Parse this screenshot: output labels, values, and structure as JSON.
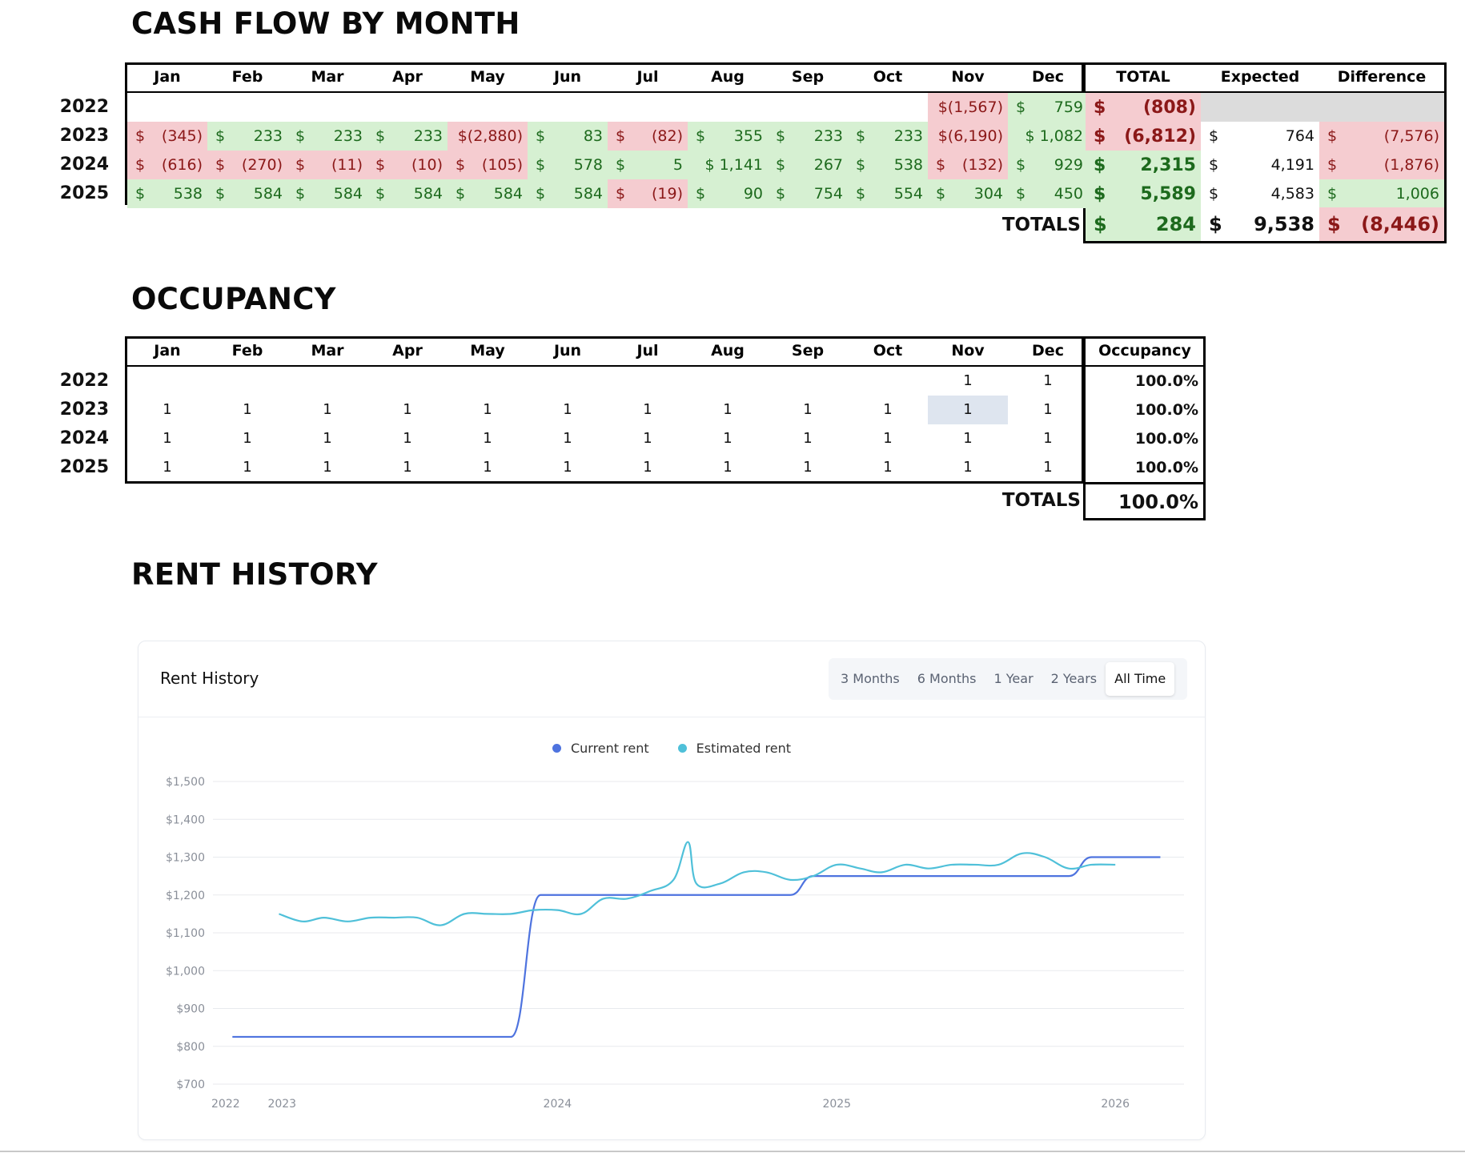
{
  "sections": {
    "cash_flow_title": "CASH FLOW BY MONTH",
    "occupancy_title": "OCCUPANCY",
    "rent_history_title": "RENT HISTORY"
  },
  "months": [
    "Jan",
    "Feb",
    "Mar",
    "Apr",
    "May",
    "Jun",
    "Jul",
    "Aug",
    "Sep",
    "Oct",
    "Nov",
    "Dec"
  ],
  "cash_flow": {
    "headers": {
      "total": "TOTAL",
      "expected": "Expected",
      "difference": "Difference"
    },
    "rows": [
      {
        "year": "2022",
        "months": [
          null,
          null,
          null,
          null,
          null,
          null,
          null,
          null,
          null,
          null,
          {
            "s": "$",
            "v": "(1,567)",
            "t": "neg",
            "joined": true
          },
          {
            "s": "$",
            "v": "759",
            "t": "pos"
          }
        ],
        "total": {
          "s": "$",
          "v": "(808)",
          "t": "neg"
        },
        "expected": null,
        "difference": null
      },
      {
        "year": "2023",
        "months": [
          {
            "s": "$",
            "v": "(345)",
            "t": "neg"
          },
          {
            "s": "$",
            "v": "233",
            "t": "pos"
          },
          {
            "s": "$",
            "v": "233",
            "t": "pos"
          },
          {
            "s": "$",
            "v": "233",
            "t": "pos"
          },
          {
            "s": "$",
            "v": "(2,880)",
            "t": "neg",
            "joined": true
          },
          {
            "s": "$",
            "v": "83",
            "t": "pos"
          },
          {
            "s": "$",
            "v": "(82)",
            "t": "neg"
          },
          {
            "s": "$",
            "v": "355",
            "t": "pos"
          },
          {
            "s": "$",
            "v": "233",
            "t": "pos"
          },
          {
            "s": "$",
            "v": "233",
            "t": "pos"
          },
          {
            "s": "$",
            "v": "(6,190)",
            "t": "neg",
            "joined": true
          },
          {
            "s": "$",
            "v": "1,082",
            "t": "pos",
            "joined": true
          }
        ],
        "total": {
          "s": "$",
          "v": "(6,812)",
          "t": "neg"
        },
        "expected": {
          "s": "$",
          "v": "764"
        },
        "difference": {
          "s": "$",
          "v": "(7,576)",
          "t": "neg"
        }
      },
      {
        "year": "2024",
        "months": [
          {
            "s": "$",
            "v": "(616)",
            "t": "neg"
          },
          {
            "s": "$",
            "v": "(270)",
            "t": "neg"
          },
          {
            "s": "$",
            "v": "(11)",
            "t": "neg"
          },
          {
            "s": "$",
            "v": "(10)",
            "t": "neg"
          },
          {
            "s": "$",
            "v": "(105)",
            "t": "neg"
          },
          {
            "s": "$",
            "v": "578",
            "t": "pos"
          },
          {
            "s": "$",
            "v": "5",
            "t": "pos"
          },
          {
            "s": "$",
            "v": "1,141",
            "t": "pos",
            "joined": true
          },
          {
            "s": "$",
            "v": "267",
            "t": "pos"
          },
          {
            "s": "$",
            "v": "538",
            "t": "pos"
          },
          {
            "s": "$",
            "v": "(132)",
            "t": "neg"
          },
          {
            "s": "$",
            "v": "929",
            "t": "pos"
          }
        ],
        "total": {
          "s": "$",
          "v": "2,315",
          "t": "pos"
        },
        "expected": {
          "s": "$",
          "v": "4,191"
        },
        "difference": {
          "s": "$",
          "v": "(1,876)",
          "t": "neg"
        }
      },
      {
        "year": "2025",
        "months": [
          {
            "s": "$",
            "v": "538",
            "t": "pos"
          },
          {
            "s": "$",
            "v": "584",
            "t": "pos"
          },
          {
            "s": "$",
            "v": "584",
            "t": "pos"
          },
          {
            "s": "$",
            "v": "584",
            "t": "pos"
          },
          {
            "s": "$",
            "v": "584",
            "t": "pos"
          },
          {
            "s": "$",
            "v": "584",
            "t": "pos"
          },
          {
            "s": "$",
            "v": "(19)",
            "t": "neg"
          },
          {
            "s": "$",
            "v": "90",
            "t": "pos"
          },
          {
            "s": "$",
            "v": "754",
            "t": "pos"
          },
          {
            "s": "$",
            "v": "554",
            "t": "pos"
          },
          {
            "s": "$",
            "v": "304",
            "t": "pos"
          },
          {
            "s": "$",
            "v": "450",
            "t": "pos"
          }
        ],
        "total": {
          "s": "$",
          "v": "5,589",
          "t": "pos"
        },
        "expected": {
          "s": "$",
          "v": "4,583"
        },
        "difference": {
          "s": "$",
          "v": "1,006",
          "t": "pos"
        }
      }
    ],
    "totals": {
      "label": "TOTALS",
      "total": {
        "s": "$",
        "v": "284",
        "t": "pos"
      },
      "expected": {
        "s": "$",
        "v": "9,538"
      },
      "difference": {
        "s": "$",
        "v": "(8,446)",
        "t": "neg"
      }
    }
  },
  "occupancy": {
    "header": "Occupancy",
    "rows": [
      {
        "year": "2022",
        "months": [
          "",
          "",
          "",
          "",
          "",
          "",
          "",
          "",
          "",
          "",
          "1",
          "1"
        ],
        "pct": "100.0%"
      },
      {
        "year": "2023",
        "months": [
          "1",
          "1",
          "1",
          "1",
          "1",
          "1",
          "1",
          "1",
          "1",
          "1",
          "1",
          "1"
        ],
        "pct": "100.0%"
      },
      {
        "year": "2024",
        "months": [
          "1",
          "1",
          "1",
          "1",
          "1",
          "1",
          "1",
          "1",
          "1",
          "1",
          "1",
          "1"
        ],
        "pct": "100.0%"
      },
      {
        "year": "2025",
        "months": [
          "1",
          "1",
          "1",
          "1",
          "1",
          "1",
          "1",
          "1",
          "1",
          "1",
          "1",
          "1"
        ],
        "pct": "100.0%"
      }
    ],
    "totals": {
      "label": "TOTALS",
      "pct": "100.0%"
    }
  },
  "rent_card": {
    "title": "Rent History",
    "ranges": [
      "3 Months",
      "6 Months",
      "1 Year",
      "2 Years",
      "All Time"
    ],
    "active_range": "All Time"
  },
  "chart_data": {
    "type": "line",
    "title": "",
    "xlabel": "",
    "ylabel": "",
    "ylim": [
      700,
      1500
    ],
    "y_ticks": [
      "$1,500",
      "$1,400",
      "$1,300",
      "$1,200",
      "$1,100",
      "$1,000",
      "$900",
      "$800",
      "$700"
    ],
    "x_ticks": [
      "2022",
      "2023",
      "2024",
      "2025",
      "2026"
    ],
    "grid": true,
    "legend": "top-center",
    "series": [
      {
        "name": "Current rent",
        "color": "#4e73df",
        "points": [
          [
            "2022-11",
            825
          ],
          [
            "2023-01",
            825
          ],
          [
            "2023-06",
            825
          ],
          [
            "2023-11",
            825
          ],
          [
            "2023-12-10",
            1200
          ],
          [
            "2024-06",
            1200
          ],
          [
            "2024-11",
            1200
          ],
          [
            "2024-12",
            1250
          ],
          [
            "2025-06",
            1250
          ],
          [
            "2025-11",
            1250
          ],
          [
            "2025-12",
            1300
          ],
          [
            "2026-03",
            1300
          ]
        ]
      },
      {
        "name": "Estimated rent",
        "color": "#4fc0d9",
        "points": [
          [
            "2023-01",
            1150
          ],
          [
            "2023-02",
            1130
          ],
          [
            "2023-03",
            1140
          ],
          [
            "2023-04",
            1130
          ],
          [
            "2023-05",
            1140
          ],
          [
            "2023-06",
            1140
          ],
          [
            "2023-07",
            1140
          ],
          [
            "2023-08",
            1120
          ],
          [
            "2023-09",
            1150
          ],
          [
            "2023-10",
            1150
          ],
          [
            "2023-11",
            1150
          ],
          [
            "2023-12",
            1160
          ],
          [
            "2024-01",
            1160
          ],
          [
            "2024-02",
            1150
          ],
          [
            "2024-03",
            1190
          ],
          [
            "2024-04",
            1190
          ],
          [
            "2024-05",
            1210
          ],
          [
            "2024-06",
            1240
          ],
          [
            "2024-06-20",
            1340
          ],
          [
            "2024-07",
            1230
          ],
          [
            "2024-08",
            1230
          ],
          [
            "2024-09",
            1260
          ],
          [
            "2024-10",
            1260
          ],
          [
            "2024-11",
            1240
          ],
          [
            "2024-12",
            1250
          ],
          [
            "2025-01",
            1280
          ],
          [
            "2025-02",
            1270
          ],
          [
            "2025-03",
            1260
          ],
          [
            "2025-04",
            1280
          ],
          [
            "2025-05",
            1270
          ],
          [
            "2025-06",
            1280
          ],
          [
            "2025-07",
            1280
          ],
          [
            "2025-08",
            1280
          ],
          [
            "2025-09",
            1310
          ],
          [
            "2025-10",
            1300
          ],
          [
            "2025-11",
            1270
          ],
          [
            "2025-12",
            1280
          ],
          [
            "2026-01",
            1280
          ]
        ]
      }
    ]
  }
}
